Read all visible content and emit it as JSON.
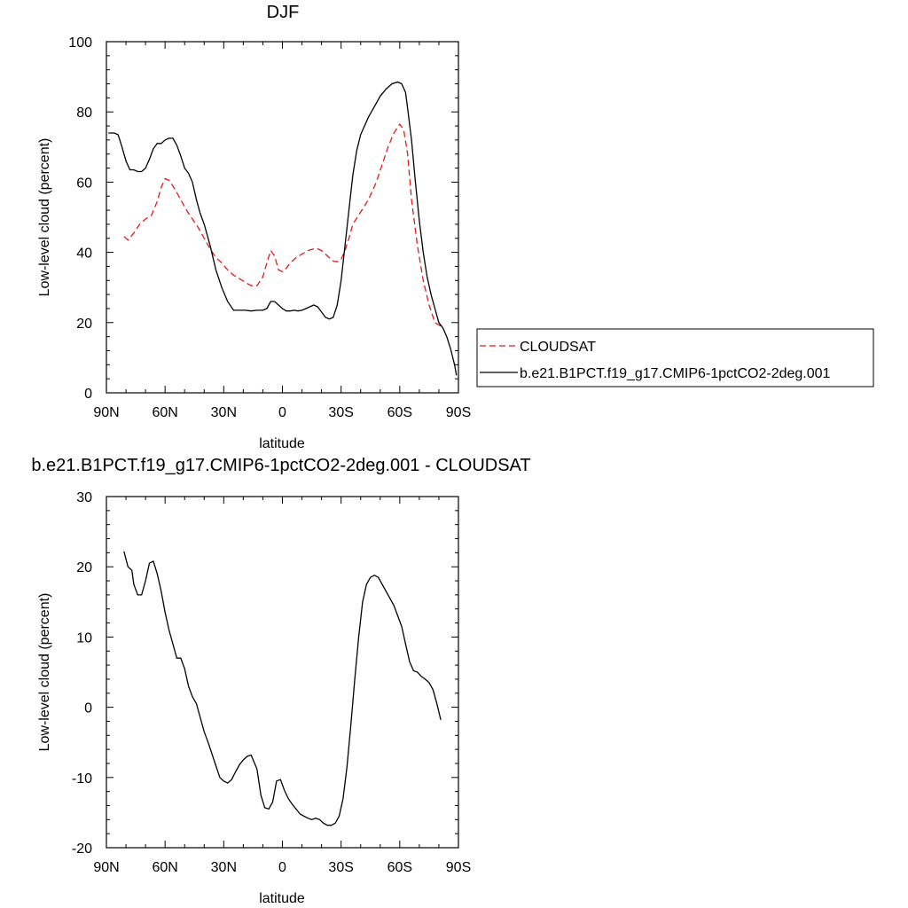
{
  "chart_data": [
    {
      "type": "line",
      "title": "DJF",
      "xlabel": "latitude",
      "ylabel": "Low-level cloud (percent)",
      "xlim": [
        -90,
        90
      ],
      "ylim": [
        0,
        100
      ],
      "xticks": [
        -90,
        -60,
        -30,
        0,
        30,
        60,
        90
      ],
      "xtick_labels": [
        "90N",
        "60N",
        "30N",
        "0",
        "30S",
        "60S",
        "90S"
      ],
      "yticks": [
        0,
        20,
        40,
        60,
        80,
        100
      ],
      "ytick_labels": [
        "0",
        "20",
        "40",
        "60",
        "80",
        "100"
      ],
      "legend_position": "right",
      "series": [
        {
          "name": "CLOUDSAT",
          "color": "#e8191b",
          "dash": "dashed",
          "x": [
            -81,
            -79,
            -76,
            -73,
            -70,
            -67,
            -64,
            -62,
            -60,
            -58,
            -55,
            -52,
            -49,
            -46,
            -43,
            -40,
            -37,
            -34,
            -31,
            -28,
            -25,
            -22,
            -19,
            -16,
            -13,
            -10,
            -8,
            -6,
            -4,
            -2,
            0,
            2,
            4,
            7,
            10,
            13,
            16,
            18,
            20,
            22,
            24,
            26,
            28,
            30,
            32,
            34,
            36,
            40,
            44,
            48,
            51,
            54,
            57,
            60,
            62,
            64,
            66,
            69,
            72,
            75,
            78,
            81
          ],
          "values": [
            44.5,
            43.5,
            45.5,
            48,
            49.5,
            50.5,
            54.5,
            58.5,
            61,
            60.5,
            58,
            55,
            52,
            49.5,
            47,
            44,
            41,
            38.5,
            37,
            35,
            33.5,
            32.5,
            31.5,
            30.5,
            30.5,
            33,
            37,
            40.5,
            39,
            35,
            34.5,
            35.5,
            37,
            38.5,
            39.5,
            40.5,
            41,
            41,
            40.5,
            39.5,
            38.5,
            37.5,
            37.3,
            38,
            40.5,
            44,
            48,
            51.5,
            55,
            60,
            65,
            70,
            74,
            76.5,
            75,
            68,
            55,
            42,
            32,
            25,
            20,
            19
          ]
        },
        {
          "name": "b.e21.B1PCT.f19_g17.CMIP6-1pctCO2-2deg.001",
          "color": "#000000",
          "dash": "solid",
          "x": [
            -89,
            -86,
            -84,
            -82,
            -80,
            -78,
            -76,
            -74,
            -72,
            -70,
            -68,
            -66,
            -64,
            -62,
            -60,
            -58,
            -56,
            -54,
            -52,
            -50,
            -48,
            -46,
            -44,
            -42,
            -40,
            -37,
            -34,
            -31,
            -28,
            -25,
            -22,
            -19,
            -16,
            -13,
            -10,
            -8,
            -6,
            -4,
            -2,
            0,
            2,
            4,
            6,
            8,
            10,
            12,
            14,
            16,
            18,
            20,
            22,
            24,
            26,
            28,
            30,
            32,
            34,
            36,
            38,
            40,
            42,
            44,
            47,
            50,
            53,
            56,
            59,
            61,
            63,
            64,
            66,
            68,
            70,
            72,
            74,
            76,
            78,
            80,
            82,
            84,
            86,
            88,
            89
          ],
          "values": [
            74,
            74,
            73.5,
            70,
            66,
            63.5,
            63.5,
            63,
            63,
            64,
            66.5,
            69.5,
            71,
            71,
            72,
            72.5,
            72.5,
            70.5,
            67.5,
            64,
            62.5,
            60,
            55,
            51,
            48,
            42,
            35,
            30,
            26,
            23.5,
            23.5,
            23.5,
            23.3,
            23.5,
            23.5,
            24,
            26,
            26,
            25,
            24,
            23.3,
            23.3,
            23.5,
            23.3,
            23.5,
            24,
            24.5,
            25,
            24.5,
            23,
            21.5,
            21,
            21.5,
            25,
            32,
            42,
            52,
            62,
            69,
            73.5,
            76,
            78.5,
            81.5,
            84.5,
            86.5,
            88,
            88.5,
            88,
            85.5,
            81,
            72,
            60,
            49,
            40,
            33,
            28,
            24,
            20,
            18.5,
            16,
            12.5,
            8,
            5
          ]
        }
      ]
    },
    {
      "type": "line",
      "title": "b.e21.B1PCT.f19_g17.CMIP6-1pctCO2-2deg.001 - CLOUDSAT",
      "xlabel": "latitude",
      "ylabel": "Low-level cloud (percent)",
      "xlim": [
        -90,
        90
      ],
      "ylim": [
        -20,
        30
      ],
      "xticks": [
        -90,
        -60,
        -30,
        0,
        30,
        60,
        90
      ],
      "xtick_labels": [
        "90N",
        "60N",
        "30N",
        "0",
        "30S",
        "60S",
        "90S"
      ],
      "yticks": [
        -20,
        -10,
        0,
        10,
        20,
        30
      ],
      "ytick_labels": [
        "-20",
        "-10",
        "0",
        "10",
        "20",
        "30"
      ],
      "series": [
        {
          "color": "#000000",
          "dash": "solid",
          "x": [
            -81,
            -79,
            -77,
            -76,
            -74,
            -72,
            -70,
            -68,
            -66,
            -64,
            -62,
            -60,
            -58,
            -56,
            -54,
            -52,
            -50,
            -48,
            -46,
            -44,
            -42,
            -40,
            -38,
            -35,
            -32,
            -30,
            -28,
            -26,
            -24,
            -22,
            -20,
            -18,
            -16,
            -13,
            -11,
            -9,
            -7,
            -5,
            -3,
            -1,
            1,
            3,
            5,
            7,
            9,
            11,
            13,
            15,
            17,
            19,
            21,
            23,
            25,
            27,
            29,
            31,
            33,
            35,
            37,
            39,
            41,
            43,
            45,
            47,
            49,
            51,
            53,
            55,
            57,
            59,
            61,
            63,
            65,
            67,
            69,
            71,
            73,
            75,
            77,
            79,
            81
          ],
          "values": [
            22.2,
            20,
            19.5,
            17.5,
            16,
            16,
            18,
            20.5,
            20.8,
            19,
            16.5,
            13.5,
            11,
            9,
            7,
            7,
            5.5,
            3,
            1.5,
            0.5,
            -1.5,
            -3.5,
            -5,
            -7.5,
            -10,
            -10.5,
            -10.8,
            -10.3,
            -9.2,
            -8.2,
            -7.5,
            -7,
            -6.8,
            -8.8,
            -12.5,
            -14.3,
            -14.5,
            -13.5,
            -10.5,
            -10.3,
            -11.8,
            -13,
            -13.8,
            -14.5,
            -15.2,
            -15.5,
            -15.8,
            -16,
            -15.8,
            -16,
            -16.5,
            -16.8,
            -16.8,
            -16.5,
            -15.5,
            -13,
            -8.5,
            -2.5,
            4,
            10,
            15,
            17.5,
            18.5,
            18.8,
            18.5,
            17.5,
            16.5,
            15.5,
            14.5,
            13,
            11.5,
            9,
            6.5,
            5.2,
            5,
            4.4,
            4,
            3.5,
            2.5,
            0.5,
            -1.8
          ]
        }
      ]
    }
  ]
}
